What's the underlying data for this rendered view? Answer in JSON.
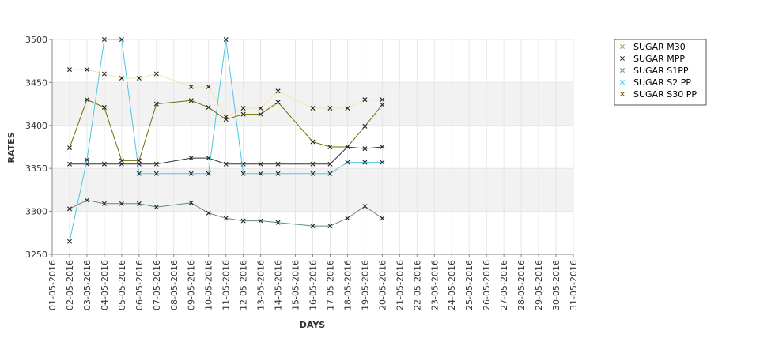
{
  "chart_data": {
    "type": "line",
    "title": "",
    "xlabel": "DAYS",
    "ylabel": "RATES",
    "ylim": [
      3250,
      3500
    ],
    "y_ticks": [
      3250,
      3300,
      3350,
      3400,
      3450,
      3500
    ],
    "grid": true,
    "legend_position": "top-right",
    "categories": [
      "01-05-2016",
      "02-05-2016",
      "03-05-2016",
      "04-05-2016",
      "05-05-2016",
      "06-05-2016",
      "07-05-2016",
      "08-05-2016",
      "09-05-2016",
      "10-05-2016",
      "11-05-2016",
      "12-05-2016",
      "13-05-2016",
      "14-05-2016",
      "15-05-2016",
      "16-05-2016",
      "17-05-2016",
      "18-05-2016",
      "19-05-2016",
      "20-05-2016",
      "21-05-2016",
      "22-05-2016",
      "23-05-2016",
      "24-05-2016",
      "25-05-2016",
      "26-05-2016",
      "27-05-2016",
      "28-05-2016",
      "29-05-2016",
      "30-05-2016",
      "31-05-2016"
    ],
    "series": [
      {
        "name": "SUGAR M30",
        "color": "#f2e6a8",
        "points": [
          [
            "02-05-2016",
            3465
          ],
          [
            "03-05-2016",
            3465
          ],
          [
            "04-05-2016",
            3460
          ],
          [
            "05-05-2016",
            3455
          ],
          [
            "06-05-2016",
            3455
          ],
          [
            "07-05-2016",
            3460
          ],
          [
            "09-05-2016",
            3445
          ],
          [
            "10-05-2016",
            3445
          ],
          [
            "11-05-2016",
            3410
          ],
          [
            "12-05-2016",
            3420
          ],
          [
            "13-05-2016",
            3420
          ],
          [
            "14-05-2016",
            3440
          ],
          [
            "16-05-2016",
            3420
          ],
          [
            "17-05-2016",
            3420
          ],
          [
            "18-05-2016",
            3420
          ],
          [
            "19-05-2016",
            3430
          ],
          [
            "20-05-2016",
            3430
          ]
        ]
      },
      {
        "name": "SUGAR MPP",
        "color": "#303030",
        "points": [
          [
            "02-05-2016",
            3355
          ],
          [
            "03-05-2016",
            3355
          ],
          [
            "04-05-2016",
            3355
          ],
          [
            "05-05-2016",
            3355
          ],
          [
            "06-05-2016",
            3355
          ],
          [
            "07-05-2016",
            3355
          ],
          [
            "09-05-2016",
            3362
          ],
          [
            "10-05-2016",
            3362
          ],
          [
            "11-05-2016",
            3355
          ],
          [
            "12-05-2016",
            3355
          ],
          [
            "13-05-2016",
            3355
          ],
          [
            "14-05-2016",
            3355
          ],
          [
            "16-05-2016",
            3355
          ],
          [
            "17-05-2016",
            3355
          ],
          [
            "18-05-2016",
            3375
          ],
          [
            "19-05-2016",
            3373
          ],
          [
            "20-05-2016",
            3375
          ]
        ]
      },
      {
        "name": "SUGAR S1PP",
        "color": "#5f8b86",
        "points": [
          [
            "02-05-2016",
            3303
          ],
          [
            "03-05-2016",
            3313
          ],
          [
            "04-05-2016",
            3309
          ],
          [
            "05-05-2016",
            3309
          ],
          [
            "06-05-2016",
            3309
          ],
          [
            "07-05-2016",
            3305
          ],
          [
            "09-05-2016",
            3310
          ],
          [
            "10-05-2016",
            3298
          ],
          [
            "11-05-2016",
            3292
          ],
          [
            "12-05-2016",
            3289
          ],
          [
            "13-05-2016",
            3289
          ],
          [
            "14-05-2016",
            3287
          ],
          [
            "16-05-2016",
            3283
          ],
          [
            "17-05-2016",
            3283
          ],
          [
            "18-05-2016",
            3292
          ],
          [
            "19-05-2016",
            3306
          ],
          [
            "20-05-2016",
            3292
          ]
        ]
      },
      {
        "name": "SUGAR S2 PP",
        "color": "#4cc8e0",
        "points": [
          [
            "02-05-2016",
            3265
          ],
          [
            "03-05-2016",
            3360
          ],
          [
            "04-05-2016",
            3500
          ],
          [
            "05-05-2016",
            3500
          ],
          [
            "06-05-2016",
            3344
          ],
          [
            "07-05-2016",
            3344
          ],
          [
            "09-05-2016",
            3344
          ],
          [
            "10-05-2016",
            3344
          ],
          [
            "11-05-2016",
            3500
          ],
          [
            "12-05-2016",
            3344
          ],
          [
            "13-05-2016",
            3344
          ],
          [
            "14-05-2016",
            3344
          ],
          [
            "16-05-2016",
            3344
          ],
          [
            "17-05-2016",
            3344
          ],
          [
            "18-05-2016",
            3357
          ],
          [
            "19-05-2016",
            3357
          ],
          [
            "20-05-2016",
            3357
          ]
        ]
      },
      {
        "name": "SUGAR S30 PP",
        "color": "#6e6e00",
        "points": [
          [
            "02-05-2016",
            3374
          ],
          [
            "03-05-2016",
            3430
          ],
          [
            "04-05-2016",
            3421
          ],
          [
            "05-05-2016",
            3359
          ],
          [
            "06-05-2016",
            3359
          ],
          [
            "07-05-2016",
            3425
          ],
          [
            "09-05-2016",
            3429
          ],
          [
            "10-05-2016",
            3421
          ],
          [
            "11-05-2016",
            3407
          ],
          [
            "12-05-2016",
            3413
          ],
          [
            "13-05-2016",
            3413
          ],
          [
            "14-05-2016",
            3427
          ],
          [
            "16-05-2016",
            3381
          ],
          [
            "17-05-2016",
            3375
          ],
          [
            "18-05-2016",
            3375
          ],
          [
            "19-05-2016",
            3399
          ],
          [
            "20-05-2016",
            3424
          ]
        ]
      }
    ]
  }
}
